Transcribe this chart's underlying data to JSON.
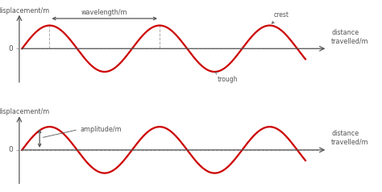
{
  "wave_color": "#cc0000",
  "axis_color": "#555555",
  "bg_color": "#ffffff",
  "dashed_color": "#aaaaaa",
  "text_color": "#555555",
  "fig_width": 4.74,
  "fig_height": 2.38,
  "dpi": 100,
  "ylabel": "displacement/m",
  "xlabel": "distance\ntravelled/m",
  "label_wavelength": "wavelength/m",
  "label_amplitude": "amplitude/m",
  "label_crest": "crest",
  "label_trough": "trough",
  "label_zero": "0",
  "xmin": -0.3,
  "xmax": 5.6,
  "ymin": -1.65,
  "ymax": 1.85,
  "wave_start": 0.1,
  "wave_end": 5.25,
  "wavelength": 2.0,
  "font_size_label": 5.8,
  "font_size_anno": 5.5,
  "font_size_zero": 6.5,
  "linewidth_wave": 1.6,
  "linewidth_axis": 0.9,
  "linewidth_dashed": 0.7
}
